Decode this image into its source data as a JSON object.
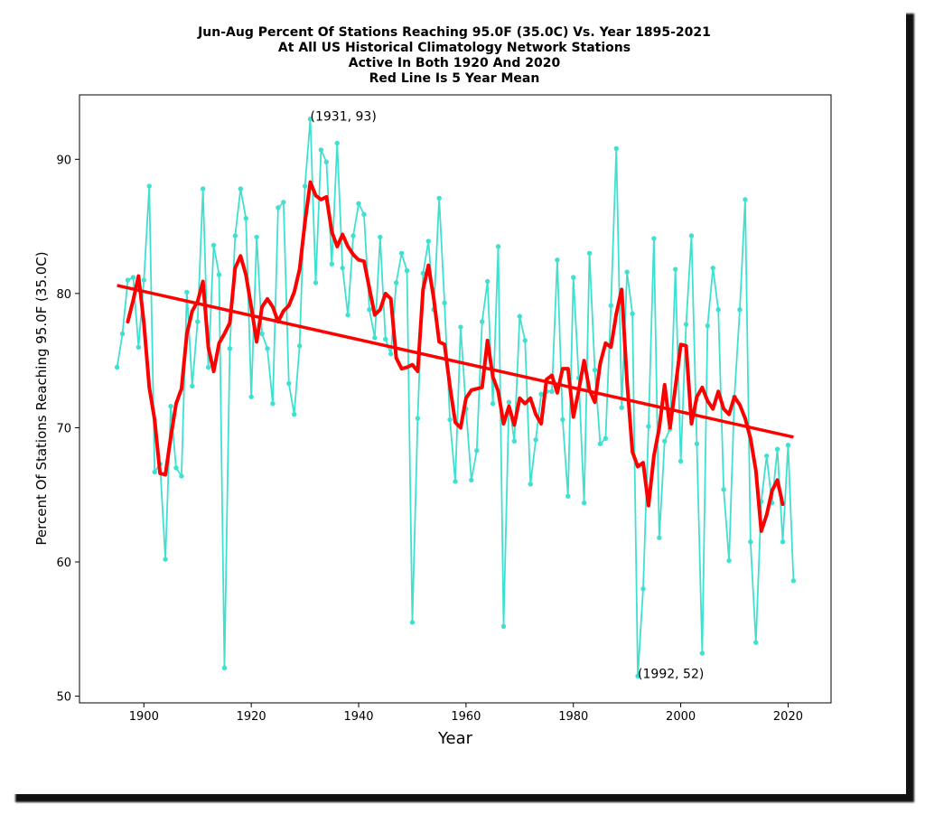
{
  "chart_data": {
    "type": "line",
    "title_lines": [
      "Jun-Aug Percent Of Stations Reaching 95.0F (35.0C) Vs. Year 1895-2021",
      "At All US Historical Climatology Network Stations",
      "Active In Both 1920 And 2020",
      "Red Line Is 5 Year Mean"
    ],
    "xlabel": "Year",
    "ylabel": "Percent Of Stations Reaching 95.0F (35.0C)",
    "xlim": [
      1888,
      2028
    ],
    "ylim": [
      49.5,
      94.8
    ],
    "xticks": [
      1900,
      1920,
      1940,
      1960,
      1980,
      2000,
      2020
    ],
    "yticks": [
      50,
      60,
      70,
      80,
      90
    ],
    "grid": false,
    "colors": {
      "series": "#40E0D0",
      "mean": "#ff0000",
      "trend": "#ff0000"
    },
    "series": [
      {
        "x": [
          1895,
          1896,
          1897,
          1898,
          1899,
          1900,
          1901,
          1902,
          1903,
          1904,
          1905,
          1906,
          1907,
          1908,
          1909,
          1910,
          1911,
          1912,
          1913,
          1914,
          1915,
          1916,
          1917,
          1918,
          1919,
          1920,
          1921,
          1922,
          1923,
          1924,
          1925,
          1926,
          1927,
          1928,
          1929,
          1930,
          1931,
          1932,
          1933,
          1934,
          1935,
          1936,
          1937,
          1938,
          1939,
          1940,
          1941,
          1942,
          1943,
          1944,
          1945,
          1946,
          1947,
          1948,
          1949,
          1950,
          1951,
          1952,
          1953,
          1954,
          1955,
          1956,
          1957,
          1958,
          1959,
          1960,
          1961,
          1962,
          1963,
          1964,
          1965,
          1966,
          1967,
          1968,
          1969,
          1970,
          1971,
          1972,
          1973,
          1974,
          1975,
          1976,
          1977,
          1978,
          1979,
          1980,
          1981,
          1982,
          1983,
          1984,
          1985,
          1986,
          1987,
          1988,
          1989,
          1990,
          1991,
          1992,
          1993,
          1994,
          1995,
          1996,
          1997,
          1998,
          1999,
          2000,
          2001,
          2002,
          2003,
          2004,
          2005,
          2006,
          2007,
          2008,
          2009,
          2010,
          2011,
          2012,
          2013,
          2014,
          2015,
          2016,
          2017,
          2018,
          2019,
          2020,
          2021
        ],
        "values": [
          74.5,
          77,
          81,
          81.2,
          76,
          81,
          88,
          66.7,
          67.3,
          60.2,
          71.6,
          67,
          66.4,
          80.1,
          73.1,
          77.9,
          87.8,
          74.5,
          83.6,
          81.4,
          52.1,
          75.9,
          84.3,
          87.8,
          85.6,
          72.3,
          84.2,
          77,
          75.9,
          71.8,
          86.4,
          86.8,
          73.3,
          71,
          76.1,
          88,
          93,
          80.8,
          90.7,
          89.8,
          82.2,
          91.2,
          81.9,
          78.4,
          84.3,
          86.7,
          85.9,
          78.8,
          76.7,
          84.2,
          76.6,
          75.5,
          80.8,
          83,
          81.7,
          55.5,
          70.7,
          81.5,
          83.9,
          78.8,
          87.1,
          79.3,
          70.6,
          66,
          77.5,
          71.4,
          66.1,
          68.3,
          77.9,
          80.9,
          71.8,
          83.5,
          55.2,
          71.9,
          69,
          78.3,
          76.5,
          65.8,
          69.1,
          72.5,
          72.7,
          72.7,
          82.5,
          70.6,
          64.9,
          81.2,
          73.7,
          64.4,
          83,
          74.3,
          68.8,
          69.2,
          79.1,
          90.8,
          71.5,
          81.6,
          78.5,
          51.5,
          58,
          70.1,
          84.1,
          61.8,
          69,
          69.9,
          81.8,
          67.5,
          77.7,
          84.3,
          68.8,
          53.2,
          77.6,
          81.9,
          78.8,
          65.4,
          60.1,
          72.3,
          78.8,
          87,
          61.5,
          54,
          64.5,
          67.9,
          64.4,
          68.4,
          61.5,
          68.7,
          58.6
        ]
      }
    ],
    "five_year_mean": {
      "x": [
        1897,
        1898,
        1899,
        1900,
        1901,
        1902,
        1903,
        1904,
        1905,
        1906,
        1907,
        1908,
        1909,
        1910,
        1911,
        1912,
        1913,
        1914,
        1915,
        1916,
        1917,
        1918,
        1919,
        1920,
        1921,
        1922,
        1923,
        1924,
        1925,
        1926,
        1927,
        1928,
        1929,
        1930,
        1931,
        1932,
        1933,
        1934,
        1935,
        1936,
        1937,
        1938,
        1939,
        1940,
        1941,
        1942,
        1943,
        1944,
        1945,
        1946,
        1947,
        1948,
        1949,
        1950,
        1951,
        1952,
        1953,
        1954,
        1955,
        1956,
        1957,
        1958,
        1959,
        1960,
        1961,
        1962,
        1963,
        1964,
        1965,
        1966,
        1967,
        1968,
        1969,
        1970,
        1971,
        1972,
        1973,
        1974,
        1975,
        1976,
        1977,
        1978,
        1979,
        1980,
        1981,
        1982,
        1983,
        1984,
        1985,
        1986,
        1987,
        1988,
        1989,
        1990,
        1991,
        1992,
        1993,
        1994,
        1995,
        1996,
        1997,
        1998,
        1999,
        2000,
        2001,
        2002,
        2003,
        2004,
        2005,
        2006,
        2007,
        2008,
        2009,
        2010,
        2011,
        2012,
        2013,
        2014,
        2015,
        2016,
        2017,
        2018,
        2019
      ],
      "values": [
        77.9,
        79.5,
        81.3,
        77.8,
        73,
        70.6,
        66.6,
        66.5,
        69.3,
        71.8,
        72.9,
        77,
        78.7,
        79.4,
        80.9,
        76,
        74.2,
        76.3,
        77,
        77.8,
        81.9,
        82.8,
        81.4,
        79,
        76.4,
        79,
        79.6,
        79,
        77.9,
        78.7,
        79.1,
        80.1,
        81.8,
        85.3,
        88.3,
        87.3,
        87,
        87.2,
        84.6,
        83.5,
        84.4,
        83.5,
        82.9,
        82.5,
        82.4,
        80.4,
        78.4,
        78.8,
        80,
        79.6,
        75.2,
        74.4,
        74.5,
        74.7,
        74.2,
        80.3,
        82.1,
        79.6,
        76.4,
        76.2,
        73.1,
        70.4,
        70,
        72.2,
        72.8,
        72.9,
        73,
        76.5,
        73.8,
        72.7,
        70.3,
        71.6,
        70.2,
        72.2,
        71.8,
        72.2,
        71,
        70.3,
        73.6,
        73.9,
        72.6,
        74.4,
        74.4,
        70.8,
        72.8,
        75,
        72.8,
        71.9,
        74.8,
        76.3,
        76,
        78.5,
        80.3,
        73.4,
        68.2,
        67.1,
        67.4,
        64.2,
        67.9,
        70,
        73.2,
        70,
        73,
        76.2,
        76.1,
        70.3,
        72.3,
        73,
        72,
        71.4,
        72.7,
        71.4,
        71,
        72.3,
        71.7,
        70.7,
        69.2,
        66.8,
        62.3,
        63.5,
        65.3,
        66.1,
        64.3
      ]
    },
    "trend": {
      "x": [
        1895,
        2021
      ],
      "values": [
        80.6,
        69.3
      ]
    },
    "annotations": [
      {
        "text": "(1931, 93)",
        "x": 1931,
        "y": 93
      },
      {
        "text": "(1992, 52)",
        "x": 1992,
        "y": 51.5
      }
    ]
  }
}
